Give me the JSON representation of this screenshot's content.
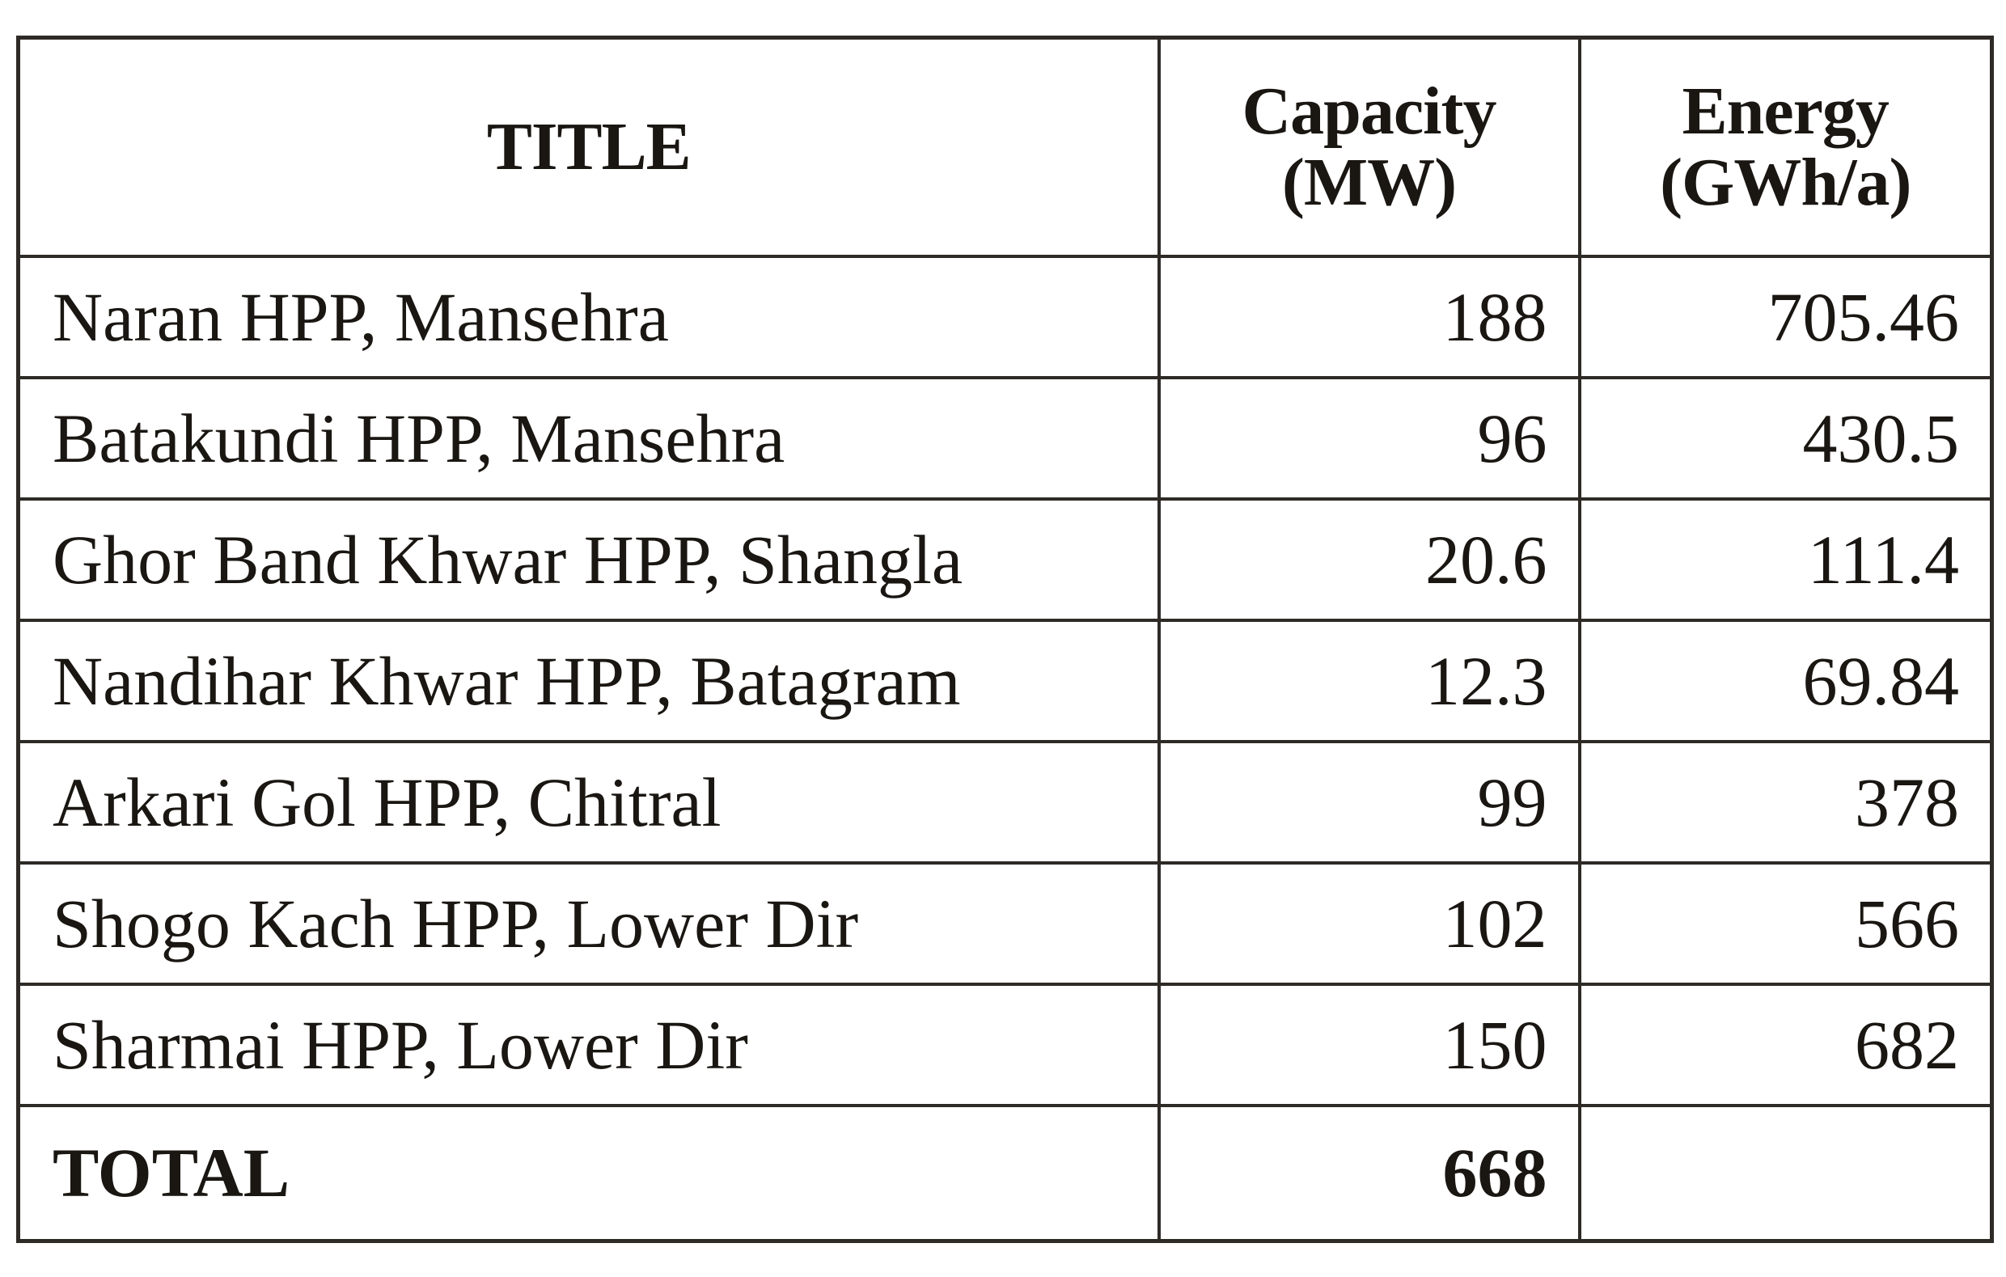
{
  "table": {
    "headers": {
      "title": "TITLE",
      "capacity_line1": "Capacity",
      "capacity_line2": "(MW)",
      "energy_line1": "Energy",
      "energy_line2": "(GWh/a)"
    },
    "rows": [
      {
        "name": "Naran HPP, Mansehra",
        "capacity": "188",
        "energy": "705.46"
      },
      {
        "name": "Batakundi HPP, Mansehra",
        "capacity": "96",
        "energy": "430.5"
      },
      {
        "name": "Ghor Band Khwar HPP, Shangla",
        "capacity": "20.6",
        "energy": "111.4"
      },
      {
        "name": "Nandihar Khwar HPP, Batagram",
        "capacity": "12.3",
        "energy": "69.84"
      },
      {
        "name": "Arkari Gol HPP, Chitral",
        "capacity": "99",
        "energy": "378"
      },
      {
        "name": "Shogo Kach HPP, Lower Dir",
        "capacity": "102",
        "energy": "566"
      },
      {
        "name": "Sharmai HPP, Lower Dir",
        "capacity": "150",
        "energy": "682"
      }
    ],
    "total": {
      "label": "TOTAL",
      "capacity": "668",
      "energy": ""
    }
  }
}
